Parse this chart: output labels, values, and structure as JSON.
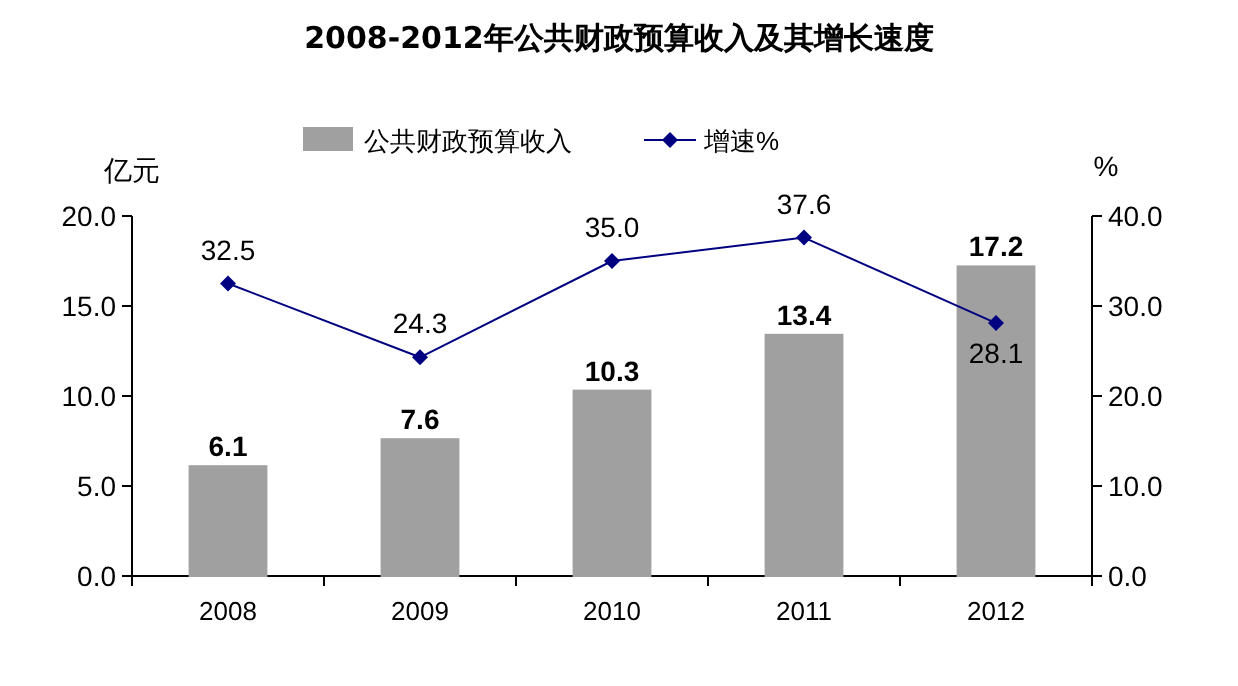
{
  "chart_data": {
    "type": "bar",
    "title": "2008-2012年公共财政预算收入及其增长速度",
    "categories": [
      "2008",
      "2009",
      "2010",
      "2011",
      "2012"
    ],
    "series": [
      {
        "name": "公共财政预算收入",
        "color": "#a0a0a0",
        "values": [
          6.1,
          7.6,
          10.3,
          13.4,
          17.2
        ],
        "value_labels": [
          "6.1",
          "7.6",
          "10.3",
          "13.4",
          "17.2"
        ]
      },
      {
        "name": "增速%",
        "type": "line",
        "axis": "y2",
        "color": "#000080",
        "values": [
          32.5,
          24.3,
          35.0,
          37.6,
          28.1
        ],
        "value_labels": [
          "32.5",
          "24.3",
          "35.0",
          "37.6",
          "28.1"
        ]
      }
    ],
    "ylabel": "亿元",
    "y2label": "%",
    "ylim": [
      0,
      20
    ],
    "yticks": [
      {
        "value": 0,
        "label": "0.0"
      },
      {
        "value": 5,
        "label": "5.0"
      },
      {
        "value": 10,
        "label": "10.0"
      },
      {
        "value": 15,
        "label": "15.0"
      },
      {
        "value": 20,
        "label": "20.0"
      }
    ],
    "y2lim": [
      0,
      40
    ],
    "y2ticks": [
      {
        "value": 0,
        "label": "0.0"
      },
      {
        "value": 10,
        "label": "10.0"
      },
      {
        "value": 20,
        "label": "20.0"
      },
      {
        "value": 30,
        "label": "30.0"
      },
      {
        "value": 40,
        "label": "40.0"
      }
    ],
    "legend": "top",
    "marker": "diamond",
    "grid": false
  }
}
